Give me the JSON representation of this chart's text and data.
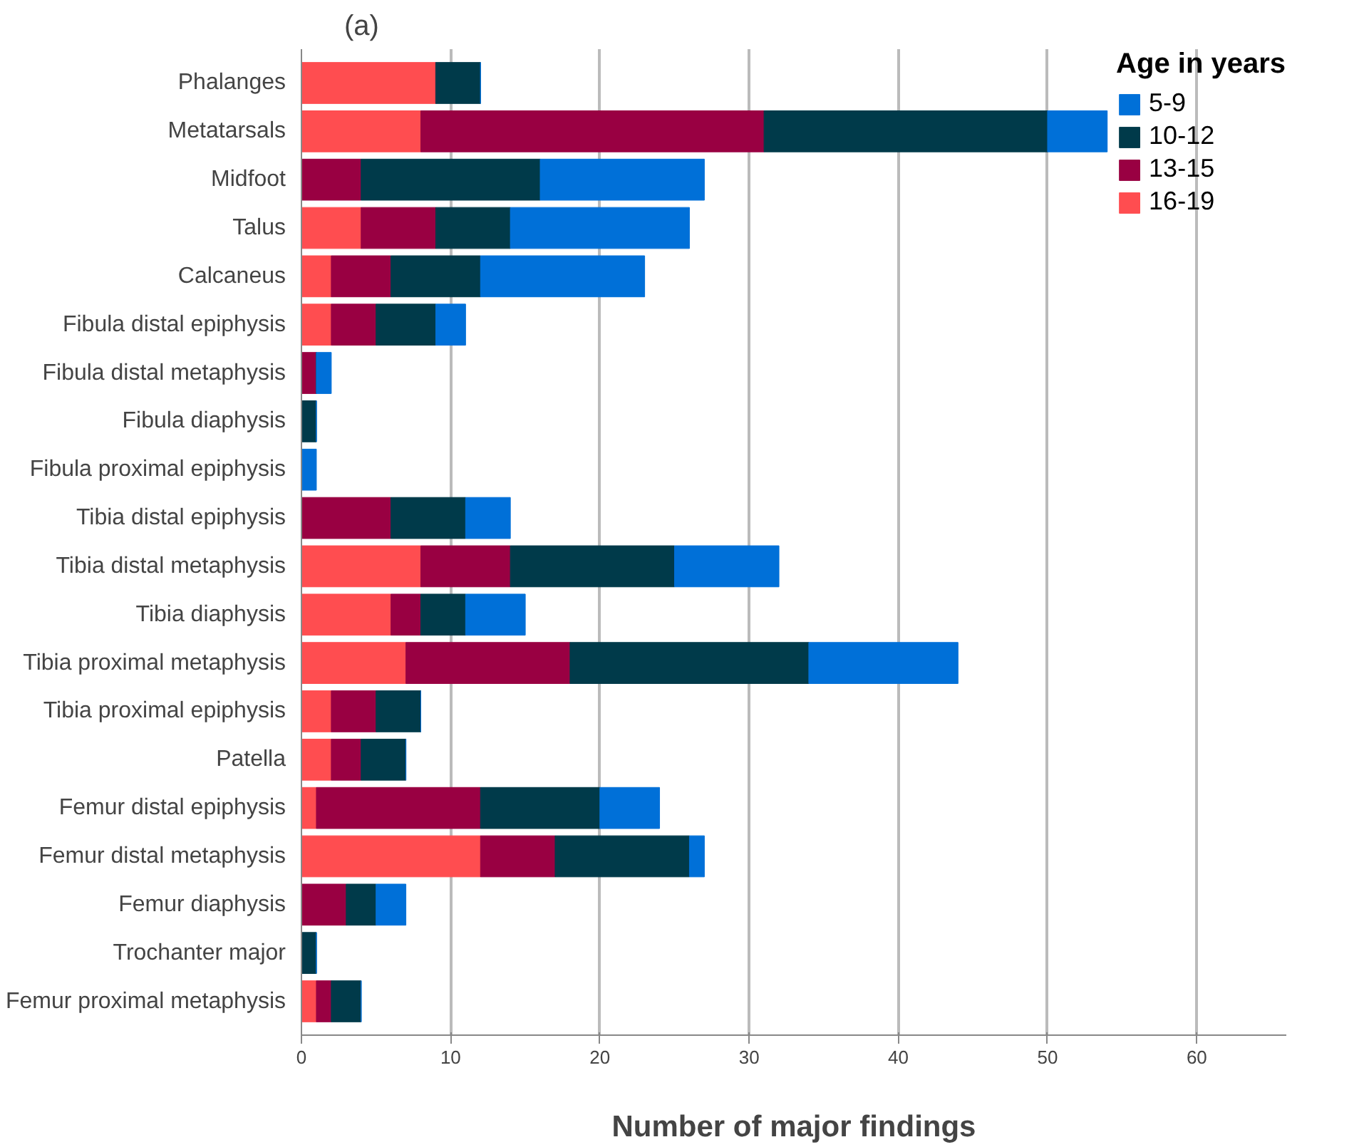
{
  "chart_data": {
    "type": "bar",
    "orientation": "horizontal",
    "stacked": true,
    "categories": [
      "Phalanges",
      "Metatarsals",
      "Midfoot",
      "Talus",
      "Calcaneus",
      "Fibula distal epiphysis",
      "Fibula distal metaphysis",
      "Fibula diaphysis",
      "Fibula proximal epiphysis",
      "Tibia distal epiphysis",
      "Tibia distal metaphysis",
      "Tibia diaphysis",
      "Tibia proximal metaphysis",
      "Tibia proximal epiphysis",
      "Patella",
      "Femur distal epiphysis",
      "Femur distal metaphysis",
      "Femur diaphysis",
      "Trochanter major",
      "Femur proximal metaphysis"
    ],
    "series": [
      {
        "name": "16-19",
        "color": "#ff4d50",
        "values": [
          9,
          8,
          0,
          4,
          2,
          2,
          0,
          0,
          0,
          0,
          8,
          6,
          7,
          2,
          2,
          1,
          12,
          0,
          0,
          1
        ]
      },
      {
        "name": "13-15",
        "color": "#990042",
        "values": [
          0,
          23,
          4,
          5,
          4,
          3,
          1,
          0,
          0,
          6,
          6,
          2,
          11,
          3,
          2,
          11,
          5,
          3,
          0,
          1
        ]
      },
      {
        "name": "10-12",
        "color": "#003a4a",
        "values": [
          3,
          19,
          12,
          5,
          6,
          4,
          0,
          1,
          0,
          5,
          11,
          3,
          16,
          3,
          3,
          8,
          9,
          2,
          1,
          2
        ]
      },
      {
        "name": "5-9",
        "color": "#0070d8",
        "values": [
          0,
          4,
          11,
          12,
          11,
          2,
          1,
          0,
          1,
          3,
          7,
          4,
          10,
          0,
          0,
          4,
          1,
          2,
          0,
          0
        ]
      }
    ],
    "xlabel": "Number of major findings",
    "legend_title": "Age in years",
    "legend": "top right",
    "xlim": [
      0,
      66
    ],
    "xticks": [
      0,
      10,
      20,
      30,
      40,
      50,
      60
    ],
    "grid": "x",
    "annotations": [
      "(a)"
    ]
  }
}
